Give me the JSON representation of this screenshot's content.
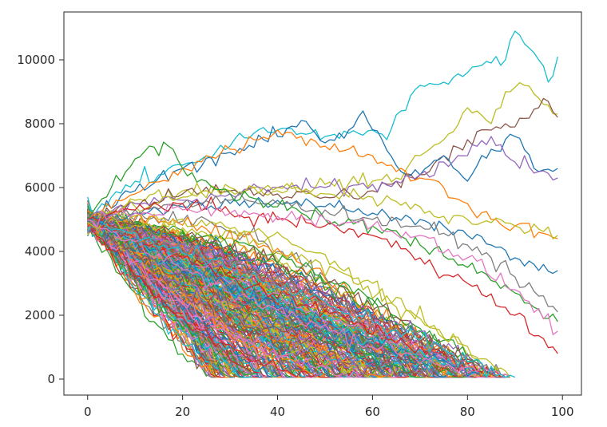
{
  "chart_data": {
    "type": "line",
    "title": "",
    "xlabel": "",
    "ylabel": "",
    "xlim": [
      -5,
      104
    ],
    "ylim": [
      -500,
      11500
    ],
    "x_ticks": [
      0,
      20,
      40,
      60,
      80,
      100
    ],
    "y_ticks": [
      0,
      2000,
      4000,
      6000,
      8000,
      10000
    ],
    "x_tick_labels": [
      "0",
      "20",
      "40",
      "60",
      "80",
      "100"
    ],
    "y_tick_labels": [
      "0",
      "2000",
      "4000",
      "6000",
      "8000",
      "10000"
    ],
    "grid": false,
    "legend": "none",
    "num_series": 300,
    "palette": [
      "#1f77b4",
      "#ff7f0e",
      "#2ca02c",
      "#d62728",
      "#9467bd",
      "#8c564b",
      "#e377c2",
      "#7f7f7f",
      "#bcbd22",
      "#17becf"
    ],
    "series": [
      {
        "color": "#17becf",
        "x": [
          0,
          5,
          10,
          15,
          20,
          25,
          30,
          35,
          40,
          45,
          50,
          55,
          60,
          63,
          66,
          70,
          75,
          80,
          85,
          88,
          90,
          92,
          95,
          98,
          99
        ],
        "y": [
          5000,
          5700,
          6200,
          6400,
          6700,
          7000,
          7300,
          7700,
          7800,
          7700,
          7600,
          7700,
          7800,
          7500,
          8400,
          9200,
          9300,
          9600,
          9900,
          10000,
          10900,
          10500,
          10000,
          9500,
          10100
        ]
      },
      {
        "color": "#bcbd22",
        "x": [
          0,
          10,
          20,
          30,
          40,
          50,
          60,
          65,
          70,
          75,
          80,
          85,
          88,
          92,
          95,
          99
        ],
        "y": [
          5000,
          5600,
          5900,
          6000,
          5900,
          6100,
          6200,
          6300,
          7000,
          7500,
          8500,
          8000,
          9000,
          9200,
          8800,
          8300
        ]
      },
      {
        "color": "#8c564b",
        "x": [
          0,
          10,
          20,
          30,
          40,
          50,
          60,
          65,
          70,
          75,
          80,
          85,
          90,
          95,
          97,
          99
        ],
        "y": [
          5000,
          5500,
          5800,
          5900,
          5800,
          5700,
          5900,
          6200,
          6400,
          7000,
          7500,
          7800,
          7900,
          8500,
          8700,
          8200
        ]
      },
      {
        "color": "#1f77b4",
        "x": [
          0,
          10,
          20,
          30,
          40,
          45,
          50,
          55,
          58,
          62,
          66,
          70,
          75,
          80,
          85,
          90,
          95,
          99
        ],
        "y": [
          5000,
          5900,
          6600,
          7100,
          7600,
          8100,
          7400,
          7800,
          8400,
          7500,
          6500,
          6400,
          7000,
          6200,
          7200,
          7600,
          6500,
          6600
        ]
      },
      {
        "color": "#ff7f0e",
        "x": [
          0,
          10,
          20,
          30,
          35,
          40,
          45,
          50,
          55,
          60,
          65,
          70,
          75,
          80,
          85,
          90,
          95,
          99
        ],
        "y": [
          5000,
          5800,
          6600,
          7200,
          7500,
          7800,
          7600,
          7300,
          7200,
          7000,
          6500,
          6300,
          6000,
          5500,
          5000,
          4800,
          4600,
          4400
        ]
      },
      {
        "color": "#9467bd",
        "x": [
          0,
          10,
          20,
          30,
          40,
          50,
          60,
          65,
          70,
          75,
          80,
          85,
          90,
          95,
          99
        ],
        "y": [
          5000,
          5500,
          5600,
          5800,
          6000,
          6000,
          6100,
          6200,
          6400,
          6800,
          7000,
          7600,
          6800,
          6500,
          6300
        ]
      },
      {
        "color": "#bcbd22",
        "x": [
          0,
          10,
          20,
          30,
          40,
          50,
          60,
          70,
          75,
          80,
          85,
          90,
          95,
          99
        ],
        "y": [
          5000,
          5400,
          5700,
          5900,
          6000,
          5800,
          5700,
          5400,
          5100,
          5000,
          4900,
          4800,
          4700,
          4500
        ]
      },
      {
        "color": "#1f77b4",
        "x": [
          0,
          10,
          20,
          30,
          40,
          50,
          60,
          70,
          80,
          85,
          90,
          95,
          99
        ],
        "y": [
          5000,
          5200,
          5400,
          5500,
          5600,
          5400,
          5200,
          5000,
          4500,
          4200,
          3800,
          3400,
          3400
        ]
      },
      {
        "color": "#7f7f7f",
        "x": [
          0,
          10,
          20,
          30,
          40,
          50,
          60,
          70,
          80,
          85,
          90,
          95,
          99
        ],
        "y": [
          5000,
          5300,
          5500,
          5600,
          5500,
          5300,
          5000,
          4800,
          4200,
          3800,
          3200,
          2600,
          2100
        ]
      },
      {
        "color": "#2ca02c",
        "x": [
          0,
          5,
          10,
          13,
          15,
          17,
          18,
          20,
          25,
          30,
          40,
          50,
          60,
          70,
          80,
          90,
          99
        ],
        "y": [
          5000,
          6000,
          6900,
          7300,
          7000,
          7300,
          7200,
          6600,
          6200,
          5800,
          5400,
          5000,
          4800,
          4200,
          3500,
          2700,
          1800
        ]
      },
      {
        "color": "#d62728",
        "x": [
          0,
          10,
          20,
          30,
          40,
          50,
          60,
          70,
          80,
          90,
          99
        ],
        "y": [
          5000,
          5300,
          5500,
          5200,
          5000,
          4800,
          4500,
          3800,
          3000,
          2000,
          800
        ]
      },
      {
        "color": "#e377c2",
        "x": [
          0,
          10,
          20,
          30,
          40,
          50,
          60,
          70,
          80,
          90,
          99
        ],
        "y": [
          5000,
          5200,
          5300,
          5200,
          5100,
          5000,
          4800,
          4500,
          3800,
          2800,
          1500
        ]
      }
    ]
  }
}
